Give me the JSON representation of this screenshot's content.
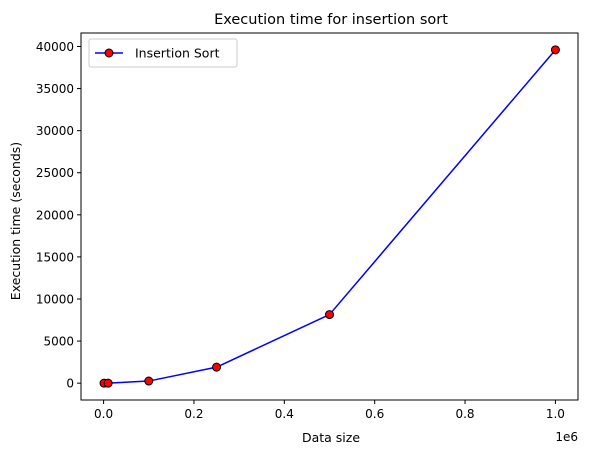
{
  "chart_data": {
    "type": "line",
    "title": "Execution time for insertion sort",
    "xlabel": "Data size",
    "ylabel": "Execution time (seconds)",
    "x_offset_label": "1e6",
    "xlim": [
      -0.05,
      1.05
    ],
    "ylim": [
      -2000,
      41600
    ],
    "x_ticks": [
      0.0,
      0.2,
      0.4,
      0.6,
      0.8,
      1.0
    ],
    "x_tick_labels": [
      "0.0",
      "0.2",
      "0.4",
      "0.6",
      "0.8",
      "1.0"
    ],
    "y_ticks": [
      0,
      5000,
      10000,
      15000,
      20000,
      25000,
      30000,
      35000,
      40000
    ],
    "y_tick_labels": [
      "0",
      "5000",
      "10000",
      "15000",
      "20000",
      "25000",
      "30000",
      "35000",
      "40000"
    ],
    "grid": false,
    "legend_position": "top-left",
    "series": [
      {
        "name": "Insertion Sort",
        "line_color": "#0000ff",
        "marker_fill": "#ff0000",
        "marker_edge": "#000000",
        "x": [
          0.001,
          0.01,
          0.1,
          0.25,
          0.5,
          1.0
        ],
        "y": [
          0,
          4,
          250,
          1900,
          8150,
          39600
        ]
      }
    ]
  }
}
